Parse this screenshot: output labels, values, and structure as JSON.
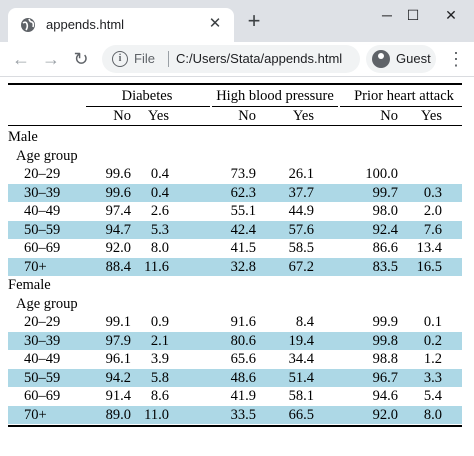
{
  "browser": {
    "tab_title": "appends.html",
    "file_label": "File",
    "url": "C:/Users/Stata/appends.html",
    "profile_label": "Guest"
  },
  "table": {
    "groups": [
      "Diabetes",
      "High blood pressure",
      "Prior heart attack"
    ],
    "subheaders": [
      "No",
      "Yes",
      "No",
      "Yes",
      "No",
      "Yes"
    ],
    "sections": [
      {
        "label": "Male",
        "sublabel": "Age group",
        "rows": [
          {
            "age": "20–29",
            "values": [
              "99.6",
              "0.4",
              "73.9",
              "26.1",
              "100.0",
              ""
            ],
            "shaded": false
          },
          {
            "age": "30–39",
            "values": [
              "99.6",
              "0.4",
              "62.3",
              "37.7",
              "99.7",
              "0.3"
            ],
            "shaded": true
          },
          {
            "age": "40–49",
            "values": [
              "97.4",
              "2.6",
              "55.1",
              "44.9",
              "98.0",
              "2.0"
            ],
            "shaded": false
          },
          {
            "age": "50–59",
            "values": [
              "94.7",
              "5.3",
              "42.4",
              "57.6",
              "92.4",
              "7.6"
            ],
            "shaded": true
          },
          {
            "age": "60–69",
            "values": [
              "92.0",
              "8.0",
              "41.5",
              "58.5",
              "86.6",
              "13.4"
            ],
            "shaded": false
          },
          {
            "age": "70+",
            "values": [
              "88.4",
              "11.6",
              "32.8",
              "67.2",
              "83.5",
              "16.5"
            ],
            "shaded": true
          }
        ]
      },
      {
        "label": "Female",
        "sublabel": "Age group",
        "rows": [
          {
            "age": "20–29",
            "values": [
              "99.1",
              "0.9",
              "91.6",
              "8.4",
              "99.9",
              "0.1"
            ],
            "shaded": false
          },
          {
            "age": "30–39",
            "values": [
              "97.9",
              "2.1",
              "80.6",
              "19.4",
              "99.8",
              "0.2"
            ],
            "shaded": true
          },
          {
            "age": "40–49",
            "values": [
              "96.1",
              "3.9",
              "65.6",
              "34.4",
              "98.8",
              "1.2"
            ],
            "shaded": false
          },
          {
            "age": "50–59",
            "values": [
              "94.2",
              "5.8",
              "48.6",
              "51.4",
              "96.7",
              "3.3"
            ],
            "shaded": true
          },
          {
            "age": "60–69",
            "values": [
              "91.4",
              "8.6",
              "41.9",
              "58.1",
              "94.6",
              "5.4"
            ],
            "shaded": false
          },
          {
            "age": "70+",
            "values": [
              "89.0",
              "11.0",
              "33.5",
              "66.5",
              "92.0",
              "8.0"
            ],
            "shaded": true
          }
        ]
      }
    ]
  }
}
